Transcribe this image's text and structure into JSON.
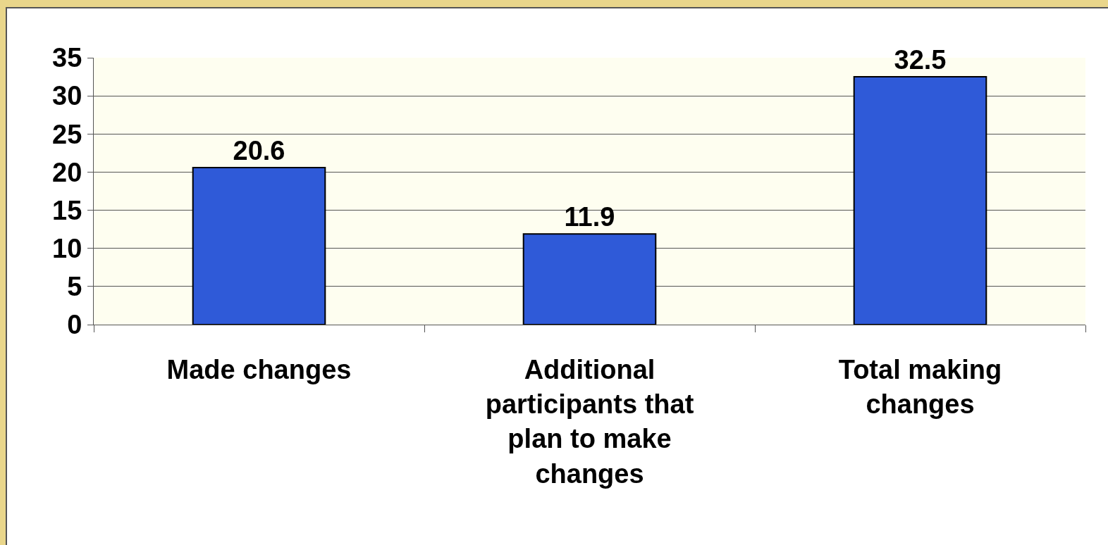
{
  "chart_data": {
    "type": "bar",
    "categories": [
      "Made changes",
      "Additional participants that plan to make changes",
      "Total making changes"
    ],
    "values": [
      20.6,
      11.9,
      32.5
    ],
    "color": "#2f5ad8",
    "ylim": [
      0,
      35
    ],
    "yticks": [
      0,
      5,
      10,
      15,
      20,
      25,
      30,
      35
    ],
    "grid": "y",
    "data_labels": true
  }
}
